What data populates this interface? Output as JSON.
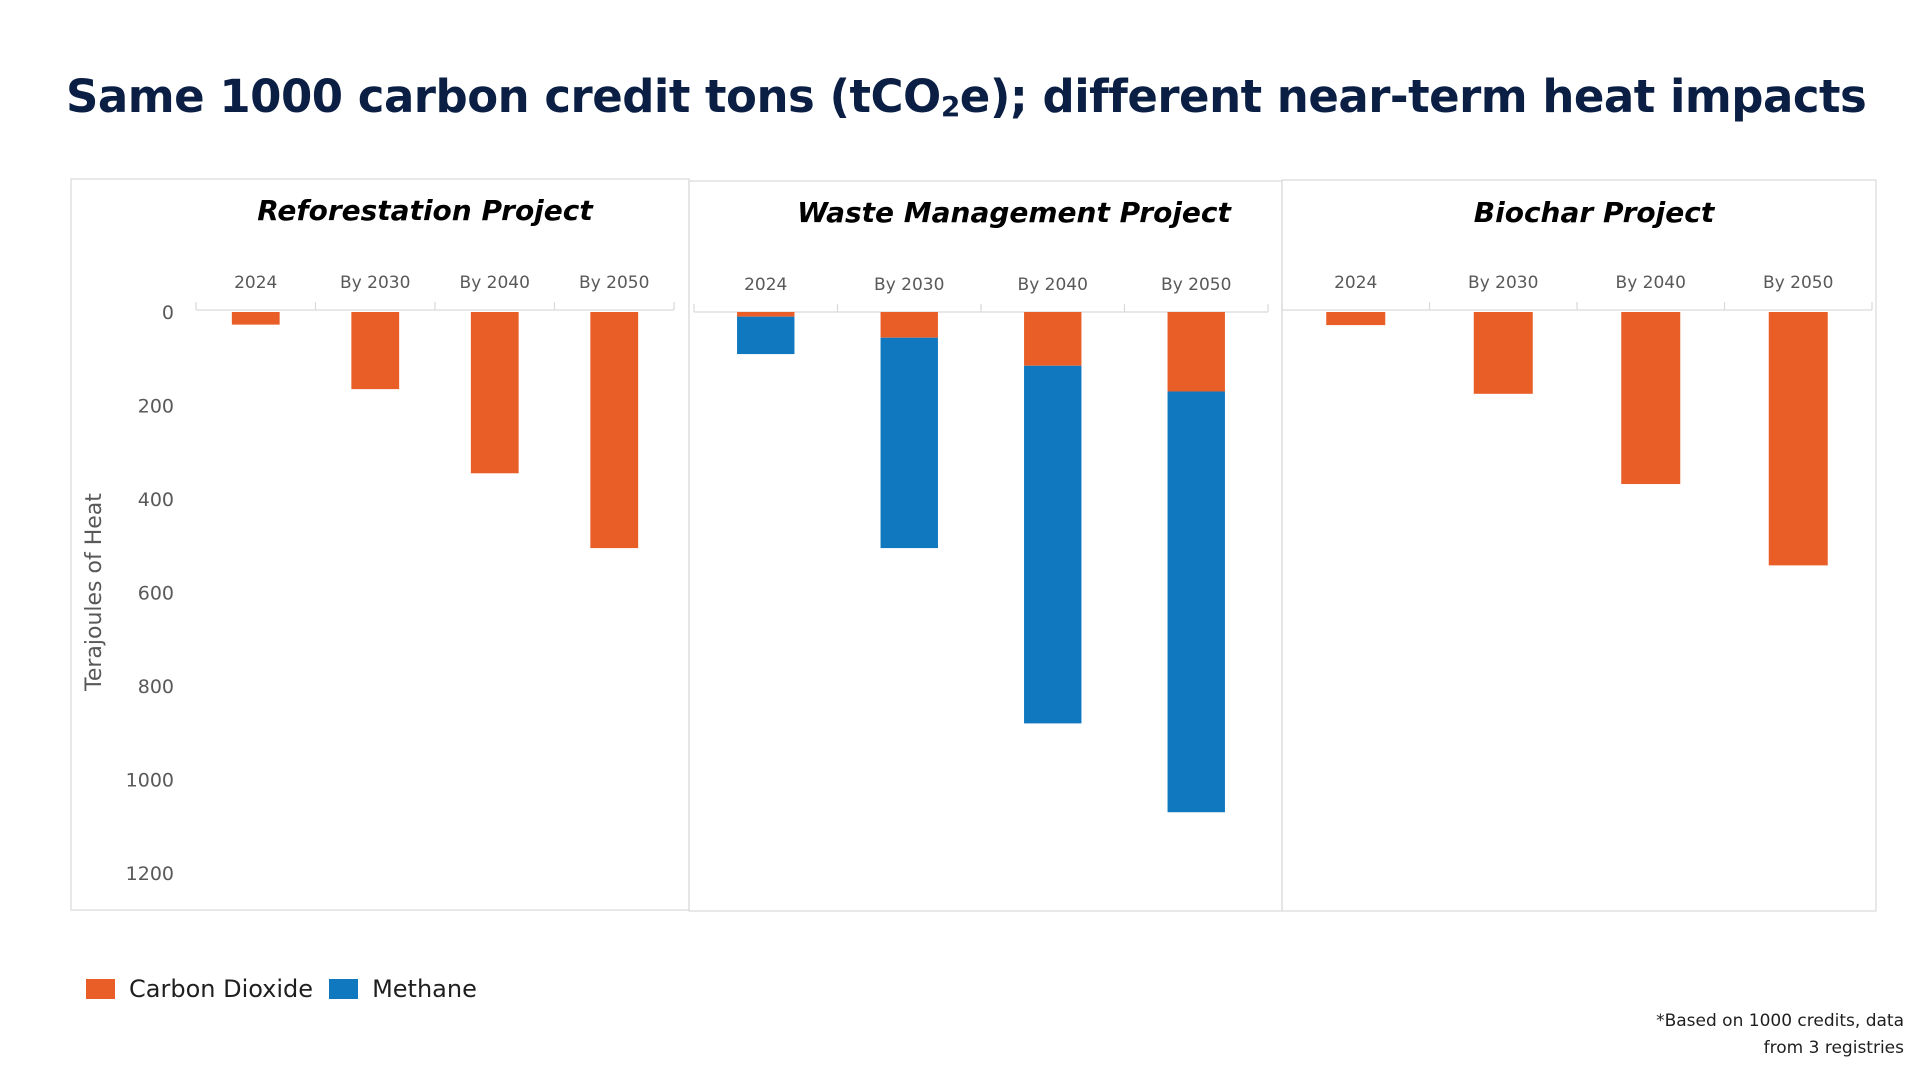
{
  "title": {
    "prefix": "Same 1000 carbon credit tons (tCO",
    "subscript": "2",
    "suffix": "e); different near-term heat impacts"
  },
  "colors": {
    "carbon_dioxide": "#e95e27",
    "methane": "#0f78bf",
    "title": "#0b1f45",
    "panel_border": "#d9d9d9",
    "axis_text": "#595959"
  },
  "legend": {
    "items": [
      {
        "label": "Carbon Dioxide",
        "color": "#e95e27"
      },
      {
        "label": "Methane",
        "color": "#0f78bf"
      }
    ]
  },
  "footnote": {
    "line1": "*Based on 1000 credits, data",
    "line2": "from 3 registries"
  },
  "chart_data": {
    "type": "bar",
    "stacked": true,
    "y_axis_reversed": true,
    "ylabel": "Terajoules of Heat",
    "ylim": [
      0,
      1200
    ],
    "yticks": [
      0,
      200,
      400,
      600,
      800,
      1000,
      1200
    ],
    "grid": false,
    "legend_position": "bottom-left",
    "panels": [
      {
        "title": "Reforestation Project",
        "categories": [
          "2024",
          "By 2030",
          "By 2040",
          "By 2050"
        ],
        "series": [
          {
            "name": "Carbon Dioxide",
            "values": [
              27,
              165,
              345,
              505
            ]
          },
          {
            "name": "Methane",
            "values": [
              0,
              0,
              0,
              0
            ]
          }
        ]
      },
      {
        "title": "Waste Management Project",
        "categories": [
          "2024",
          "By 2030",
          "By 2040",
          "By 2050"
        ],
        "series": [
          {
            "name": "Carbon Dioxide",
            "values": [
              10,
              55,
              115,
              170
            ]
          },
          {
            "name": "Methane",
            "values": [
              80,
              450,
              765,
              900
            ]
          }
        ]
      },
      {
        "title": "Biochar Project",
        "categories": [
          "2024",
          "By 2030",
          "By 2040",
          "By 2050"
        ],
        "series": [
          {
            "name": "Carbon Dioxide",
            "values": [
              28,
              175,
              368,
              542
            ]
          },
          {
            "name": "Methane",
            "values": [
              0,
              0,
              0,
              0
            ]
          }
        ]
      }
    ]
  }
}
